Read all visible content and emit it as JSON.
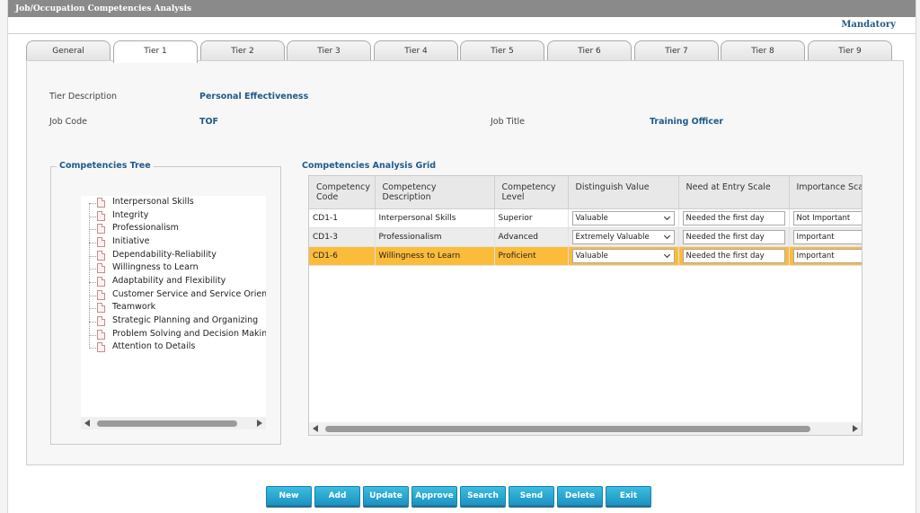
{
  "window": {
    "title": "Job/Occupation Competencies Analysis",
    "mandatory": "Mandatory"
  },
  "tabs": [
    "General",
    "Tier 1",
    "Tier 2",
    "Tier 3",
    "Tier 4",
    "Tier 5",
    "Tier 6",
    "Tier 7",
    "Tier 8",
    "Tier 9"
  ],
  "active_tab": "Tier 1",
  "form": {
    "tier_description_label": "Tier Description",
    "tier_description_value": "Personal Effectiveness",
    "job_code_label": "Job Code",
    "job_code_value": "TOF",
    "job_title_label": "Job Title",
    "job_title_value": "Training Officer"
  },
  "tree": {
    "title": "Competencies Tree",
    "items": [
      "Interpersonal Skills",
      "Integrity",
      "Professionalism",
      "Initiative",
      "Dependability-Reliability",
      "Willingness to Learn",
      "Adaptability and Flexibility",
      "Customer Service and Service Orientati",
      "Teamwork",
      "Strategic Planning and Organizing",
      "Problem Solving and Decision Making",
      "Attention to Details"
    ]
  },
  "grid": {
    "title": "Competencies Analysis Grid",
    "columns": [
      "Competency Code",
      "Competency Description",
      "Competency Level",
      "Distinguish Value",
      "Need at Entry Scale",
      "Importance Scale"
    ],
    "rows": [
      {
        "code": "CD1-1",
        "description": "Interpersonal Skills",
        "level": "Superior",
        "distinguish": "Valuable",
        "entry": "Needed the first day",
        "importance": "Not Important"
      },
      {
        "code": "CD1-3",
        "description": "Professionalism",
        "level": "Advanced",
        "distinguish": "Extremely Valuable",
        "entry": "Needed the first day",
        "importance": "Important"
      },
      {
        "code": "CD1-6",
        "description": "Willingness to Learn",
        "level": "Proficient",
        "distinguish": "Valuable",
        "entry": "Needed the first day",
        "importance": "Important"
      }
    ]
  },
  "buttons": [
    "New",
    "Add",
    "Update",
    "Approve",
    "Search",
    "Send",
    "Delete",
    "Exit"
  ],
  "colors": {
    "accent": "#1f5a8a",
    "selected_row": "#fbbc3a",
    "button": "#1d93c2",
    "titlebar": "#8a8a8a"
  }
}
